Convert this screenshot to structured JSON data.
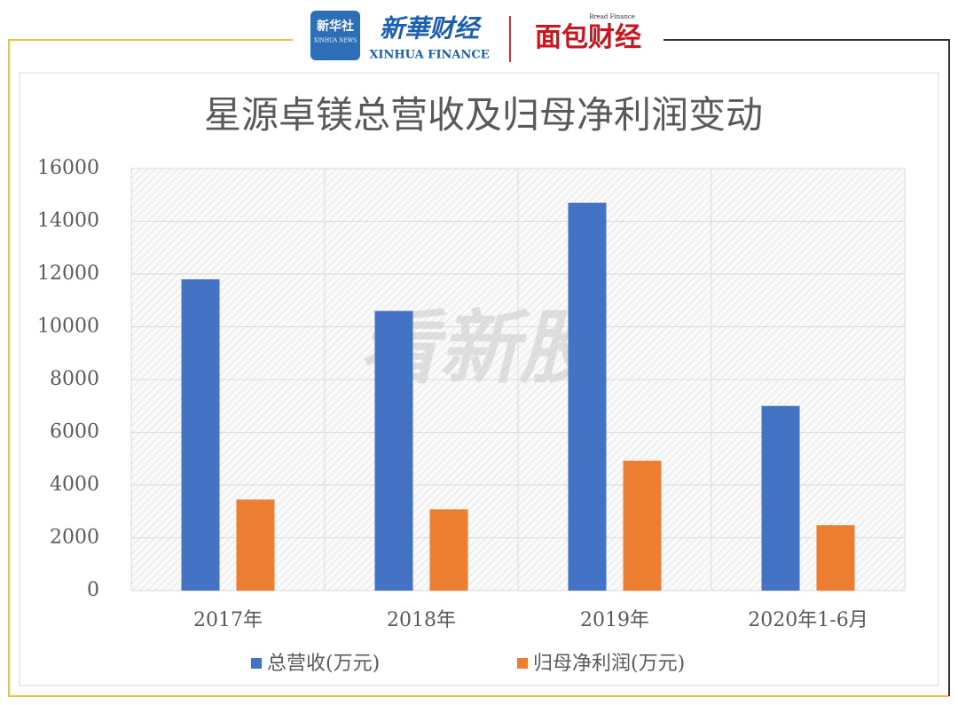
{
  "header": {
    "logo_a": "新华社",
    "logo_a_sub": "XINHUA NEWS",
    "logo_b": "新華财经",
    "logo_b_sub": "XINHUA FINANCE",
    "logo_c": "面包财经",
    "logo_c_sub": "Bread Finance"
  },
  "watermark": "看新股",
  "chart_data": {
    "type": "bar",
    "title": "星源卓镁总营收及归母净利润变动",
    "categories": [
      "2017年",
      "2018年",
      "2019年",
      "2020年1-6月"
    ],
    "series": [
      {
        "name": "总营收(万元)",
        "color": "#4472c4",
        "values": [
          11800,
          10600,
          14700,
          7000
        ]
      },
      {
        "name": "归母净利润(万元)",
        "color": "#ed7d31",
        "values": [
          3450,
          3080,
          4920,
          2480
        ]
      }
    ],
    "ylim": [
      0,
      16000
    ],
    "yticks": [
      0,
      2000,
      4000,
      6000,
      8000,
      10000,
      12000,
      14000,
      16000
    ],
    "grid": true,
    "legend": "bottom"
  }
}
